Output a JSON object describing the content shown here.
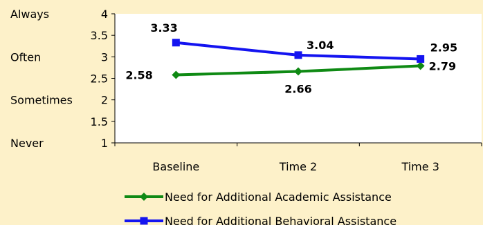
{
  "chart_data": {
    "type": "line",
    "categories": [
      "Baseline",
      "Time 2",
      "Time 3"
    ],
    "ylim": [
      1,
      4
    ],
    "yticks": [
      "1",
      "1.5",
      "2",
      "2.5",
      "3",
      "3.5",
      "4"
    ],
    "ycategory_labels": [
      {
        "value": 4,
        "label": "Always"
      },
      {
        "value": 3,
        "label": "Often"
      },
      {
        "value": 2,
        "label": "Sometimes"
      },
      {
        "value": 1,
        "label": "Never"
      }
    ],
    "series": [
      {
        "name": "Need for Additional Academic Assistance",
        "values": [
          2.58,
          2.66,
          2.79
        ],
        "labels": [
          "2.58",
          "2.66",
          "2.79"
        ],
        "color": "#0f8a14",
        "marker": "diamond"
      },
      {
        "name": "Need for Additional Behavioral Assistance",
        "values": [
          3.33,
          3.04,
          2.95
        ],
        "labels": [
          "3.33",
          "3.04",
          "2.95"
        ],
        "color": "#1414f0",
        "marker": "square"
      }
    ],
    "grid": false,
    "legend_position": "bottom"
  }
}
